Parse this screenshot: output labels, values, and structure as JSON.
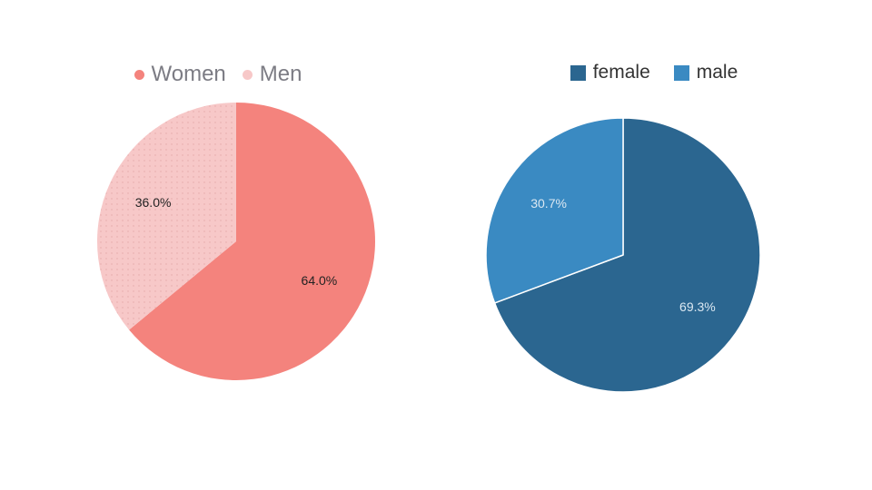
{
  "chart_data": [
    {
      "type": "pie",
      "categories": [
        "Women",
        "Men"
      ],
      "values": [
        64.0,
        36.0
      ],
      "labels": [
        "64.0%",
        "36.0%"
      ],
      "colors": [
        "#f4837d",
        "#f7c8c8"
      ],
      "label_colors": [
        "#222222",
        "#222222"
      ],
      "legend_position": "top",
      "legend_style": "dot",
      "start_angle": "12 o'clock",
      "direction": "clockwise"
    },
    {
      "type": "pie",
      "categories": [
        "female",
        "male"
      ],
      "values": [
        69.3,
        30.7
      ],
      "labels": [
        "69.3%",
        "30.7%"
      ],
      "colors": [
        "#2b6690",
        "#3a8ac2"
      ],
      "label_colors": [
        "#dbe8f2",
        "#dbe8f2"
      ],
      "legend_position": "top",
      "legend_style": "square",
      "start_angle": "12 o'clock",
      "direction": "clockwise"
    }
  ]
}
